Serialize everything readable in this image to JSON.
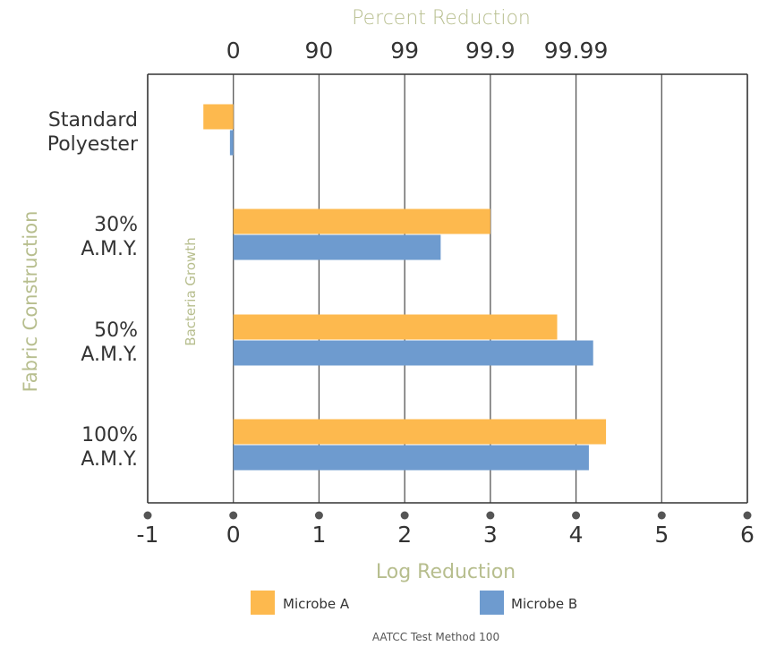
{
  "chart_data": {
    "type": "bar",
    "orientation": "horizontal",
    "top_axis_title": "Percent Reduction",
    "top_ticks": [
      {
        "x": 0,
        "label": "0"
      },
      {
        "x": 1,
        "label": "90"
      },
      {
        "x": 2,
        "label": "99"
      },
      {
        "x": 3,
        "label": "99.9"
      },
      {
        "x": 4,
        "label": "99.99"
      }
    ],
    "xlabel": "Log Reduction",
    "ylabel": "Fabric Construction",
    "xlim": [
      -1,
      6
    ],
    "x_ticks": [
      -1,
      0,
      1,
      2,
      3,
      4,
      5,
      6
    ],
    "grid": true,
    "categories": [
      [
        "Standard",
        "Polyester"
      ],
      [
        "30%",
        "A.M.Y."
      ],
      [
        "50%",
        "A.M.Y."
      ],
      [
        "100%",
        "A.M.Y."
      ]
    ],
    "series": [
      {
        "name": "Microbe A",
        "color": "#FDB94E",
        "values": [
          -0.35,
          3.0,
          3.78,
          4.35
        ]
      },
      {
        "name": "Microbe B",
        "color": "#6E9BCF",
        "values": [
          -0.04,
          2.42,
          4.2,
          4.15
        ]
      }
    ],
    "annotation": "Bacteria Growth",
    "legend_position": "bottom",
    "footnote": "AATCC Test Method 100",
    "colors": {
      "title": "#B7BE8E",
      "axis_line": "#333333",
      "grid": "#555555",
      "dot": "#555555"
    }
  }
}
